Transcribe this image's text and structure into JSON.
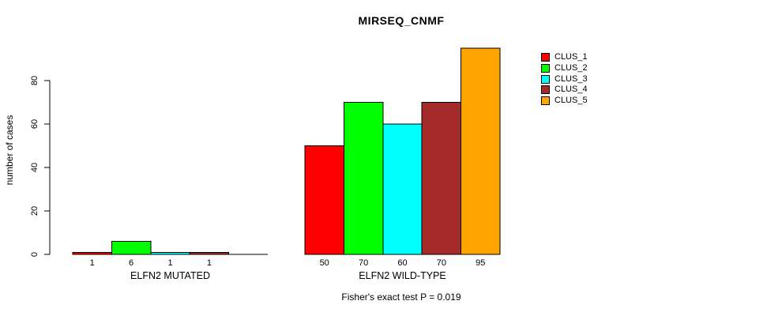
{
  "chart_data": {
    "type": "bar",
    "title": "MIRSEQ_CNMF",
    "ylabel": "number of cases",
    "xlabel": "",
    "yticks": [
      0,
      20,
      40,
      60,
      80
    ],
    "ylim": [
      0,
      95
    ],
    "grid": false,
    "legend_position": "right",
    "series": [
      {
        "name": "CLUS_1",
        "color": "#ff0000"
      },
      {
        "name": "CLUS_2",
        "color": "#00ff00"
      },
      {
        "name": "CLUS_3",
        "color": "#00ffff"
      },
      {
        "name": "CLUS_4",
        "color": "#a52a2a"
      },
      {
        "name": "CLUS_5",
        "color": "#ffa500"
      }
    ],
    "groups": [
      {
        "label": "ELFN2 MUTATED",
        "values": [
          1,
          6,
          1,
          1,
          0
        ],
        "bar_labels": [
          "1",
          "6",
          "1",
          "1",
          ""
        ]
      },
      {
        "label": "ELFN2 WILD-TYPE",
        "values": [
          50,
          70,
          60,
          70,
          95
        ],
        "bar_labels": [
          "50",
          "70",
          "60",
          "70",
          "95"
        ]
      }
    ],
    "annotation": "Fisher's exact test P = 0.019",
    "axis_color": "#000000"
  }
}
